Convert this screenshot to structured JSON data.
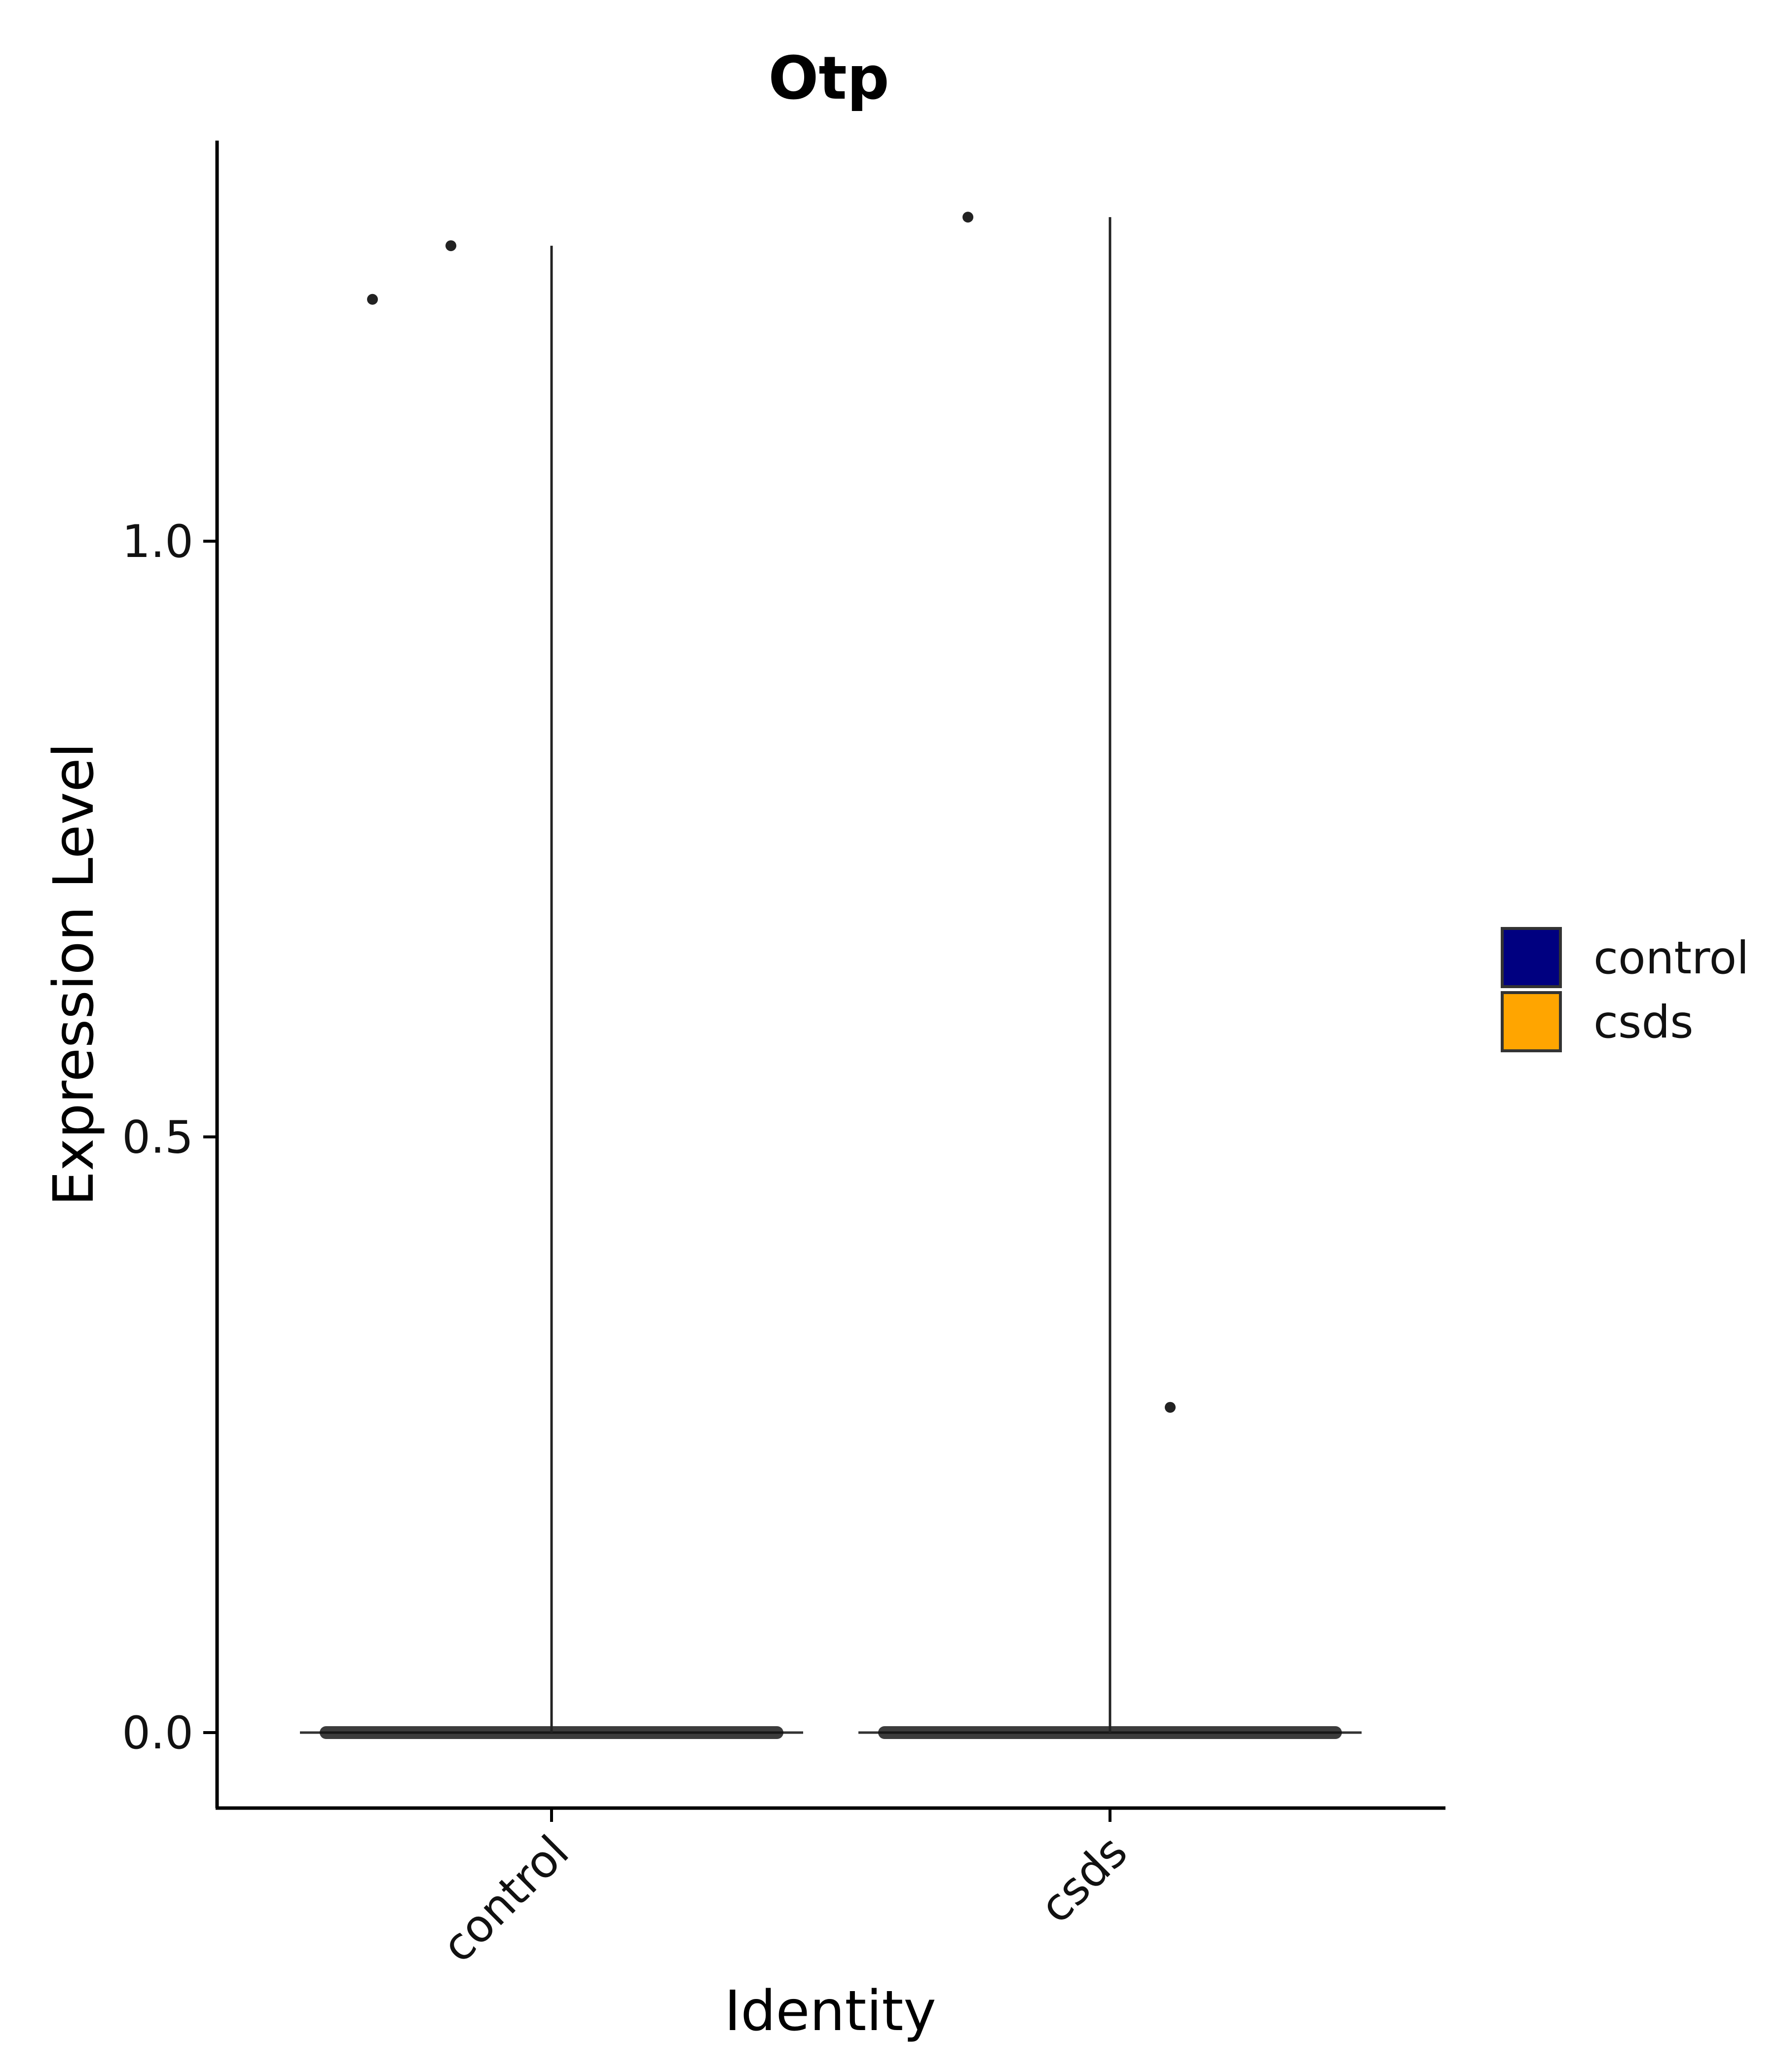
{
  "chart_data": {
    "type": "violin",
    "title": "Otp",
    "xlabel": "Identity",
    "ylabel": "Expression Level",
    "categories": [
      "control",
      "csds"
    ],
    "ylim": [
      -0.06,
      1.34
    ],
    "yticks": [
      0.0,
      0.5,
      1.0
    ],
    "ytick_labels": [
      "0.0",
      "0.5",
      "1.0"
    ],
    "series": [
      {
        "name": "control",
        "color": "#000080",
        "violin_max": 1.248,
        "outliers": [
          1.203,
          1.248
        ]
      },
      {
        "name": "csds",
        "color": "#FFA500",
        "violin_max": 1.272,
        "outliers": [
          1.272,
          0.273
        ]
      }
    ],
    "legend": {
      "position": "right",
      "entries": [
        "control",
        "csds"
      ]
    },
    "grid": false
  }
}
